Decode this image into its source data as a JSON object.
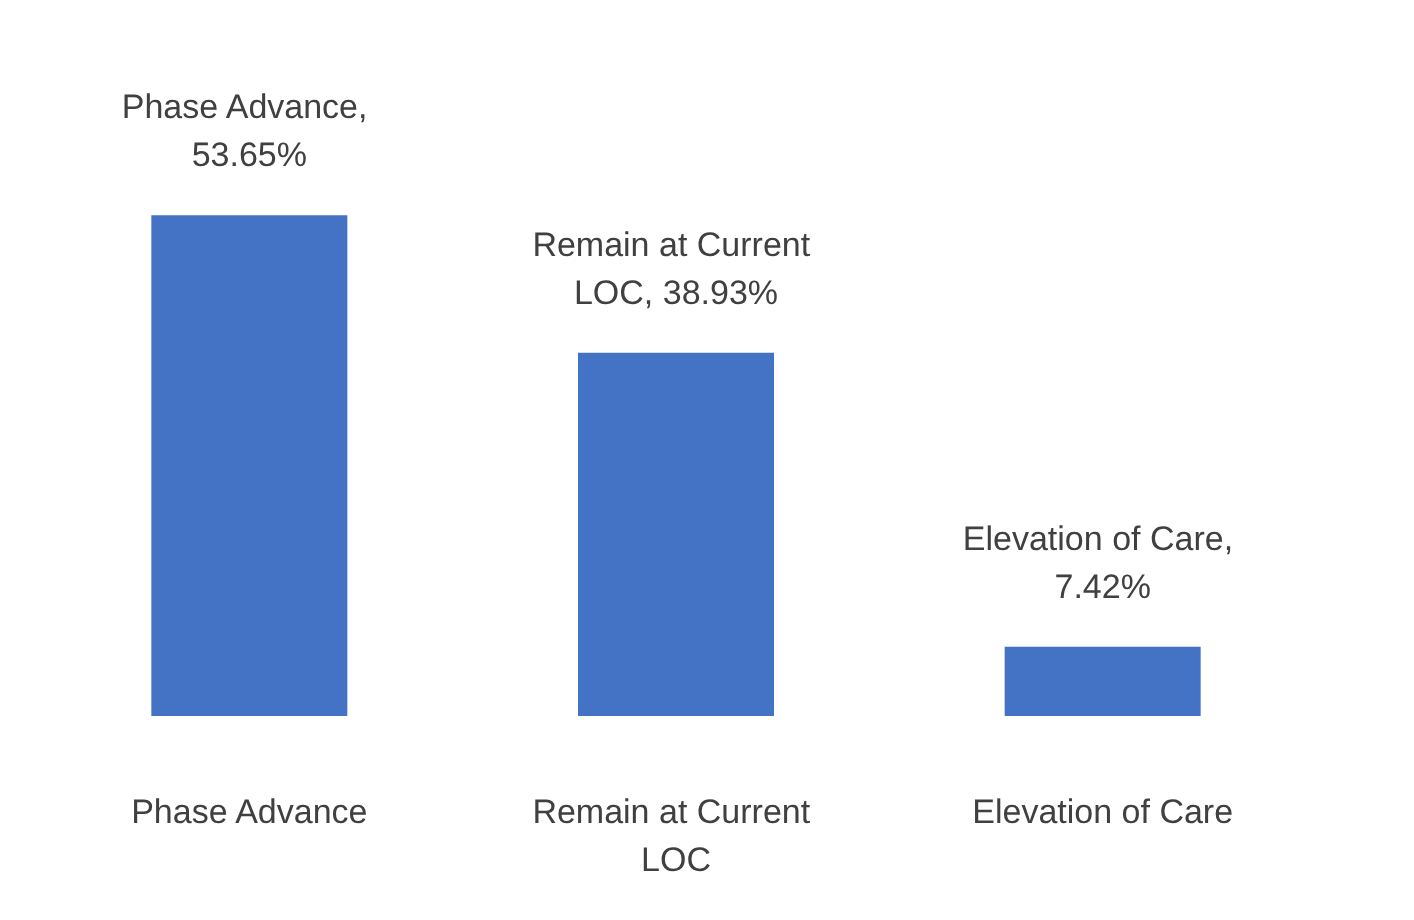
{
  "chart_data": {
    "type": "bar",
    "categories": [
      "Phase Advance",
      "Remain at Current LOC",
      "Elevation of Care"
    ],
    "values": [
      53.65,
      38.93,
      7.42
    ],
    "value_labels": [
      "Phase Advance, 53.65%",
      "Remain at Current LOC, 38.93%",
      "Elevation of Care, 7.42%"
    ],
    "color": "#4472c4"
  }
}
